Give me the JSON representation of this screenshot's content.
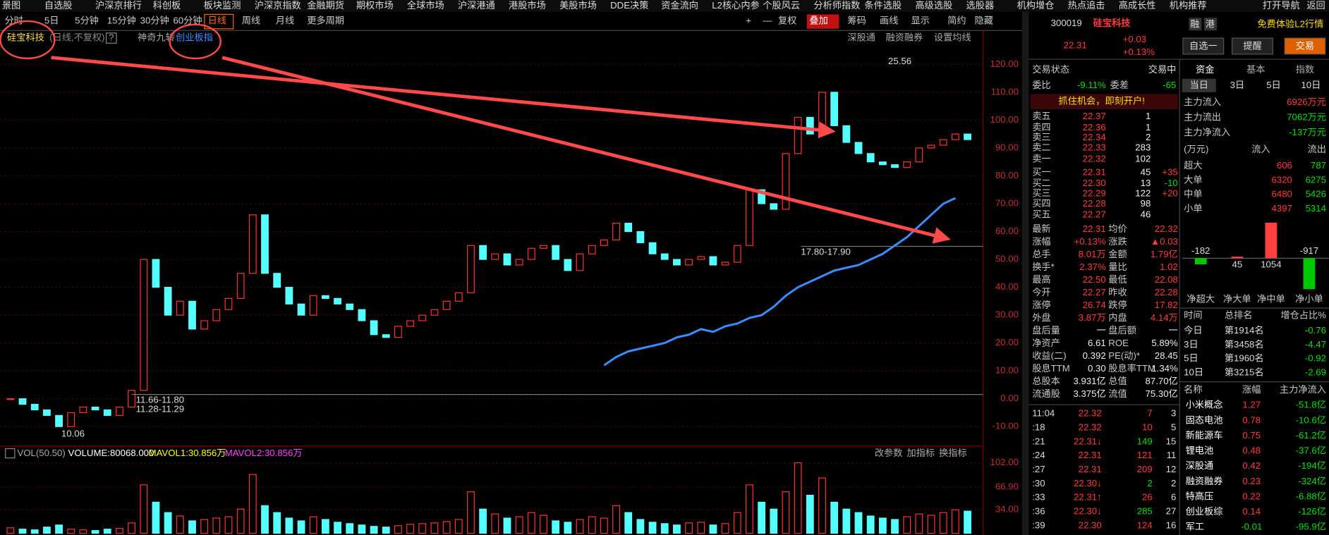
{
  "menu": [
    "景图",
    "自选股",
    "沪深京排行",
    "科创板",
    "板块监测",
    "沪深京指数",
    "金融期货",
    "期权市场",
    "全球市场",
    "沪深港通",
    "港股市场",
    "美股市场",
    "DDE决策",
    "资金流向",
    "L2核心内参",
    "个股风云",
    "分析师指数",
    "条件选股",
    "高级选股",
    "选股器",
    "机构增仓",
    "热点追击",
    "高成长性",
    "机构推荐",
    "打开导航",
    "返回"
  ],
  "toolbar_left": [
    "分时",
    "5日",
    "5分钟",
    "15分钟",
    "30分钟",
    "60分钟",
    "日线",
    "周线",
    "月线",
    "更多周期"
  ],
  "toolbar_right": [
    "+",
    "—",
    "复权",
    "叠加",
    "筹码",
    "画线",
    "显示",
    "简约",
    "隐藏"
  ],
  "chart_header": {
    "name": "硅宝科技",
    "mode": "(日线,不复权)",
    "help": "?",
    "indicator": "神奇九转",
    "overlay": "创业板指",
    "right": [
      "深股通",
      "融资融券",
      "设置均线"
    ]
  },
  "chart_data": {
    "type": "candlestick",
    "series": [
      {
        "name": "硅宝科技",
        "values": [
          0,
          -2,
          -4,
          -6,
          -10,
          -5,
          -3,
          -4,
          -6,
          -3,
          3,
          50,
          40,
          30,
          35,
          25,
          28,
          32,
          36,
          45,
          66,
          45,
          40,
          34,
          30,
          37,
          36,
          34,
          32,
          28,
          23,
          22,
          26,
          28,
          30,
          32,
          35,
          38,
          55,
          50,
          52,
          48,
          50,
          54,
          55,
          50,
          46,
          52,
          55,
          57,
          63,
          60,
          56,
          52,
          50,
          48,
          50,
          51,
          48,
          49,
          55,
          75,
          70,
          68,
          88,
          101,
          95,
          110,
          98,
          92,
          88,
          85,
          84,
          83,
          85,
          90,
          91,
          93,
          95,
          93
        ]
      },
      {
        "name": "创业板指",
        "color": "#3b8cff",
        "values": [
          null,
          null,
          null,
          null,
          null,
          null,
          null,
          null,
          null,
          null,
          null,
          null,
          null,
          null,
          null,
          null,
          null,
          null,
          null,
          null,
          null,
          null,
          null,
          null,
          null,
          null,
          null,
          null,
          null,
          null,
          null,
          null,
          null,
          null,
          null,
          null,
          null,
          null,
          null,
          null,
          null,
          null,
          null,
          null,
          null,
          null,
          null,
          null,
          null,
          12,
          15,
          17,
          18,
          19,
          20,
          22,
          23,
          25,
          24,
          26,
          27,
          29,
          30,
          33,
          37,
          40,
          42,
          44,
          46,
          47,
          48,
          50,
          52,
          55,
          58,
          62,
          66,
          70,
          72
        ]
      }
    ],
    "ylim": [
      -16.4,
      126.4
    ],
    "yticks": [
      {
        "value": 120,
        "label": "120.00"
      },
      {
        "value": 110,
        "label": "110.00"
      },
      {
        "value": 100,
        "label": "100.00"
      },
      {
        "value": 90,
        "label": "90.00"
      },
      {
        "value": 80,
        "label": "80.00"
      },
      {
        "value": 70,
        "label": "70.00"
      },
      {
        "value": 60,
        "label": "60.00"
      },
      {
        "value": 50,
        "label": "50.00"
      },
      {
        "value": 40,
        "label": "40.00"
      },
      {
        "value": 30,
        "label": "30.00"
      },
      {
        "value": 20,
        "label": "20.00"
      },
      {
        "value": 10,
        "label": "10.00"
      },
      {
        "value": 0,
        "label": "0.00"
      },
      {
        "value": -10,
        "label": "-10.00"
      }
    ],
    "grid": true,
    "up_color": "#ff3232",
    "down_color": "#54ffff",
    "annotations": [
      "25.56",
      "10.06",
      "17.80-17.90",
      "11.66-11.80",
      "11.28-11.29"
    ]
  },
  "volume_data": {
    "type": "bar",
    "header": [
      "VOL(50.50)",
      "VOLUME:80068.000",
      "MAVOL1:30.856万",
      "MAVOL2:30.856万"
    ],
    "buttons": [
      "改参数",
      "加指标",
      "换指标"
    ],
    "values": [
      8,
      6,
      5,
      9,
      12,
      6,
      5,
      4,
      6,
      7,
      15,
      70,
      45,
      30,
      25,
      18,
      20,
      22,
      24,
      35,
      85,
      40,
      30,
      22,
      18,
      24,
      20,
      16,
      14,
      12,
      10,
      9,
      11,
      13,
      14,
      15,
      17,
      20,
      60,
      35,
      28,
      22,
      24,
      30,
      26,
      18,
      16,
      20,
      24,
      22,
      40,
      30,
      20,
      16,
      14,
      12,
      15,
      16,
      12,
      14,
      30,
      70,
      45,
      35,
      60,
      102,
      55,
      80,
      45,
      35,
      30,
      25,
      22,
      20,
      24,
      28,
      26,
      30,
      34,
      32
    ],
    "ylim": [
      0,
      104
    ],
    "yticks": [
      {
        "value": 102,
        "label": "102.00"
      },
      {
        "value": 66.9,
        "label": "66.90"
      },
      {
        "value": 34,
        "label": "34.00"
      }
    ]
  },
  "quote": {
    "code": "300019",
    "name": "硅宝科技",
    "price": "22.31",
    "change": "+0.03",
    "change_pct": "+0.13%",
    "tags": [
      "融",
      "港"
    ],
    "l2": "免费体验L2行情",
    "buttons": [
      "自选一",
      "提醒",
      "交易"
    ],
    "status_label": "交易状态",
    "status": "交易中",
    "ratio_label": "委比",
    "ratio": "-9.11%",
    "diff_label": "委差",
    "diff": "-65",
    "promo": "抓住机会，即刻开户!"
  },
  "order_book": [
    [
      "卖五",
      "22.37",
      "1"
    ],
    [
      "卖四",
      "22.36",
      "1"
    ],
    [
      "卖三",
      "22.34",
      "2"
    ],
    [
      "卖二",
      "22.33",
      "283"
    ],
    [
      "卖一",
      "22.32",
      "102"
    ],
    [
      "买一",
      "22.31",
      "45",
      "+35"
    ],
    [
      "买二",
      "22.30",
      "13",
      "-10"
    ],
    [
      "买三",
      "22.29",
      "122",
      "+20"
    ],
    [
      "买四",
      "22.28",
      "98"
    ],
    [
      "买五",
      "22.27",
      "46"
    ]
  ],
  "stats": [
    [
      "最新",
      "22.31",
      "均价",
      "22.32"
    ],
    [
      "涨幅",
      "+0.13%",
      "涨跌",
      "▲0.03"
    ],
    [
      "总手",
      "8.01万",
      "金额",
      "1.79亿"
    ],
    [
      "换手*",
      "2.37%",
      "量比",
      "1.02"
    ],
    [
      "最高",
      "22.50",
      "最低",
      "22.08"
    ],
    [
      "今开",
      "22.27",
      "昨收",
      "22.28"
    ],
    [
      "涨停",
      "26.74",
      "跌停",
      "17.82"
    ],
    [
      "外盘",
      "3.87万",
      "内盘",
      "4.14万"
    ],
    [
      "盘后量",
      "一",
      "盘后额",
      "一"
    ],
    [
      "净资产",
      "6.61",
      "ROE",
      "5.89%"
    ],
    [
      "收益(二)",
      "0.392",
      "PE(动)*",
      "28.45"
    ],
    [
      "股息TTM",
      "0.30",
      "股息率TTM",
      "1.34%"
    ],
    [
      "总股本",
      "3.931亿",
      "总值",
      "87.70亿"
    ],
    [
      "流通股",
      "3.375亿",
      "流值",
      "75.30亿"
    ]
  ],
  "trades": [
    [
      "11:04",
      "22.32",
      "7",
      "3"
    ],
    [
      ":18",
      "22.32",
      "10",
      "5"
    ],
    [
      ":21",
      "22.31↓",
      "149",
      "15"
    ],
    [
      ":24",
      "22.31",
      "121",
      "11"
    ],
    [
      ":27",
      "22.31",
      "209",
      "12"
    ],
    [
      ":30",
      "22.30↓",
      "2",
      "2"
    ],
    [
      ":33",
      "22.31↑",
      "26",
      "6"
    ],
    [
      ":36",
      "22.30↓",
      "285",
      "27"
    ],
    [
      ":39",
      "22.30",
      "124",
      "16"
    ]
  ],
  "fund": {
    "tabs": [
      "资金",
      "基本",
      "指数"
    ],
    "periods": [
      "当日",
      "3日",
      "5日",
      "10日"
    ],
    "main": [
      [
        "主力流入",
        "6926万元"
      ],
      [
        "主力流出",
        "7062万元"
      ],
      [
        "主力净流入",
        "-137万元"
      ]
    ],
    "flow_header": [
      "(万元)",
      "流入",
      "流出"
    ],
    "flow": [
      [
        "超大",
        "606",
        "787"
      ],
      [
        "大单",
        "6320",
        "6275"
      ],
      [
        "中单",
        "6480",
        "5426"
      ],
      [
        "小单",
        "4397",
        "5314"
      ]
    ],
    "net_chart": {
      "type": "bar",
      "categories": [
        "净超大",
        "净大单",
        "净中单",
        "净小单"
      ],
      "values": [
        -182,
        45,
        1054,
        -917
      ],
      "up_color": "#ff4040",
      "down_color": "#00c800"
    },
    "rank_header": [
      "时间",
      "总排名",
      "增仓占比%"
    ],
    "rank": [
      [
        "今日",
        "第1914名",
        "-0.76"
      ],
      [
        "3日",
        "第3458名",
        "-4.47"
      ],
      [
        "5日",
        "第1960名",
        "-0.92"
      ],
      [
        "10日",
        "第3215名",
        "-2.69"
      ]
    ],
    "sector_header": [
      "名称",
      "涨幅",
      "主力净流入"
    ],
    "sectors": [
      [
        "小米概念",
        "1.27",
        "-51.8亿"
      ],
      [
        "固态电池",
        "0.78",
        "-10.6亿"
      ],
      [
        "新能源车",
        "0.75",
        "-61.2亿"
      ],
      [
        "锂电池",
        "0.48",
        "-37.6亿"
      ],
      [
        "深股通",
        "0.42",
        "-194亿"
      ],
      [
        "融资融券",
        "0.23",
        "-324亿"
      ],
      [
        "特高压",
        "0.22",
        "-6.88亿"
      ],
      [
        "创业板综",
        "0.14",
        "-126亿"
      ],
      [
        "军工",
        "-0.01",
        "-95.9亿"
      ]
    ]
  }
}
